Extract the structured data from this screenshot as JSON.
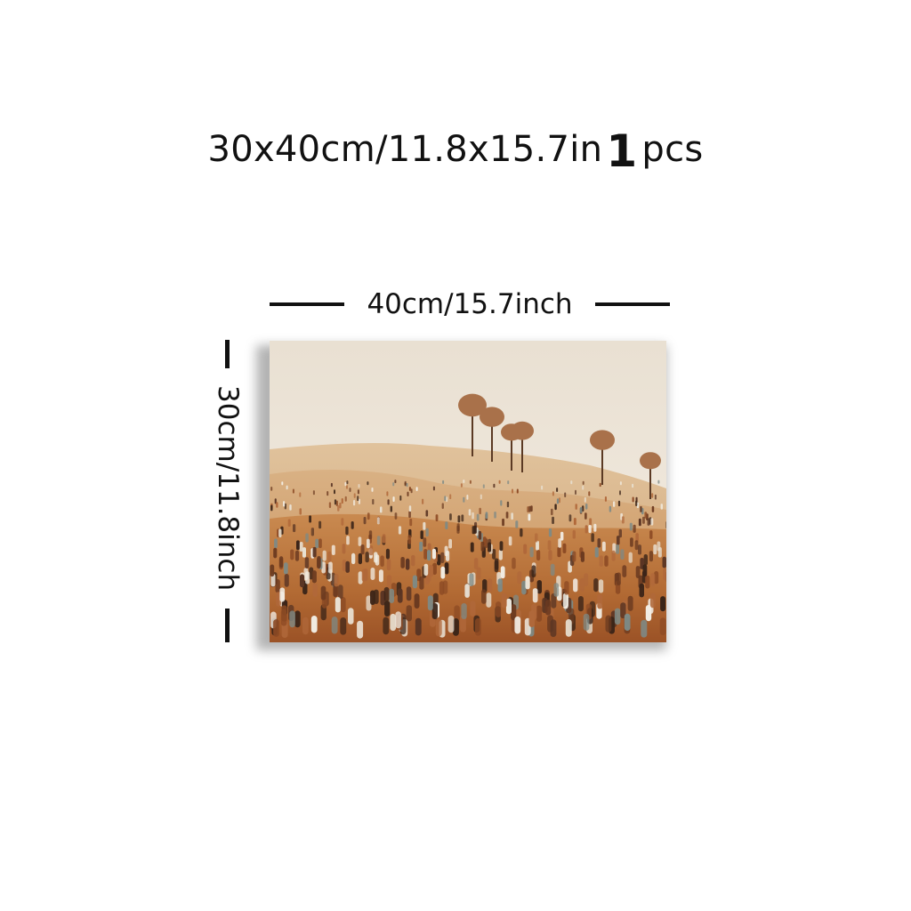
{
  "title": {
    "size_text": "30x40cm/11.8x15.7in",
    "quantity": "1",
    "unit": "pcs"
  },
  "dimensions": {
    "width_label": "40cm/15.7inch",
    "height_label": "30cm/11.8inch"
  },
  "colors": {
    "sky": "#efe6d9",
    "field_light": "#d2a676",
    "field_dark": "#a8612e",
    "tree": "#b07a55"
  }
}
